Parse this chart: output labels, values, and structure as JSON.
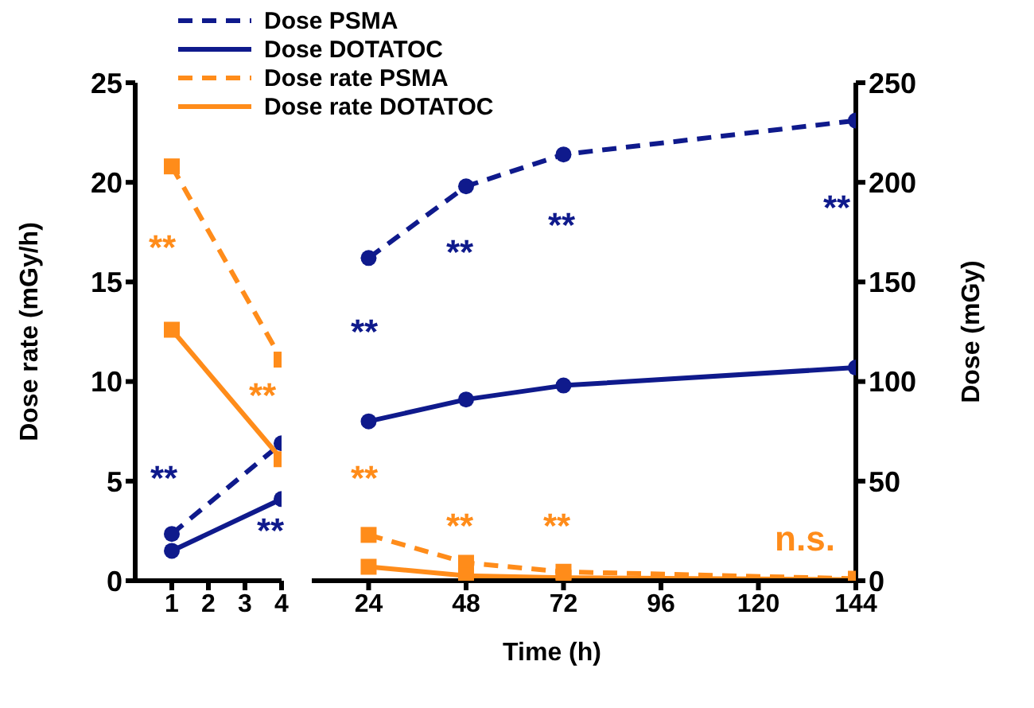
{
  "chart_data": [
    {
      "type": "line",
      "x": [
        1,
        4
      ],
      "xlim": [
        0,
        4
      ],
      "xticks": [
        1,
        2,
        3,
        4
      ],
      "ylabel": "Dose rate (mGy/h)",
      "ylim": [
        0,
        25
      ],
      "yticks": [
        0,
        5,
        10,
        15,
        20,
        25
      ],
      "y2lim": [
        0,
        250
      ],
      "tick_labels": [
        "x",
        "y"
      ],
      "legend": "top right",
      "grid": false,
      "series": [
        {
          "name": "Dose PSMA",
          "color": "#0f1a8c",
          "values": [
            23.5,
            69
          ],
          "axis": "y2",
          "line_style": "dashed",
          "marker": "circle"
        },
        {
          "name": "Dose DOTATOC",
          "color": "#0f1a8c",
          "values": [
            15,
            41
          ],
          "axis": "y2",
          "line_style": "solid",
          "marker": "circle"
        },
        {
          "name": "Dose rate PSMA",
          "color": "#ff8c1a",
          "values": [
            20.8,
            11.1
          ],
          "line_style": "dashed",
          "marker": "square"
        },
        {
          "name": "Dose rate DOTATOC",
          "color": "#ff8c1a",
          "values": [
            12.6,
            6.1
          ],
          "line_style": "solid",
          "marker": "square"
        }
      ],
      "annotations": [
        "**",
        "**",
        "**",
        "**"
      ]
    },
    {
      "type": "line",
      "x": [
        24,
        48,
        72,
        144
      ],
      "xlim": [
        10,
        144
      ],
      "xticks": [
        24,
        48,
        72,
        96,
        120,
        144
      ],
      "xlabel": "Time (h)",
      "ylim": [
        0,
        25
      ],
      "y2label": "Dose (mGy)",
      "y2lim": [
        0,
        250
      ],
      "y2ticks": [
        0,
        50,
        100,
        150,
        200,
        250
      ],
      "tick_labels": [
        "x",
        "y2"
      ],
      "grid": false,
      "series": [
        {
          "color": "#0f1a8c",
          "values": [
            162,
            198,
            214,
            231
          ],
          "axis": "y2",
          "line_style": "dashed",
          "marker": "circle"
        },
        {
          "color": "#0f1a8c",
          "values": [
            80,
            91,
            98,
            107
          ],
          "axis": "y2",
          "line_style": "solid",
          "marker": "circle"
        },
        {
          "color": "#ff8c1a",
          "values": [
            2.3,
            0.9,
            0.45,
            0.1
          ],
          "line_style": "dashed",
          "marker": "square"
        },
        {
          "color": "#ff8c1a",
          "values": [
            0.7,
            0.25,
            0.15,
            0.05
          ],
          "line_style": "solid",
          "marker": "square"
        }
      ],
      "annotations": [
        "**",
        "**",
        "**",
        "**",
        "**",
        "**",
        "**",
        "n.s."
      ]
    }
  ]
}
